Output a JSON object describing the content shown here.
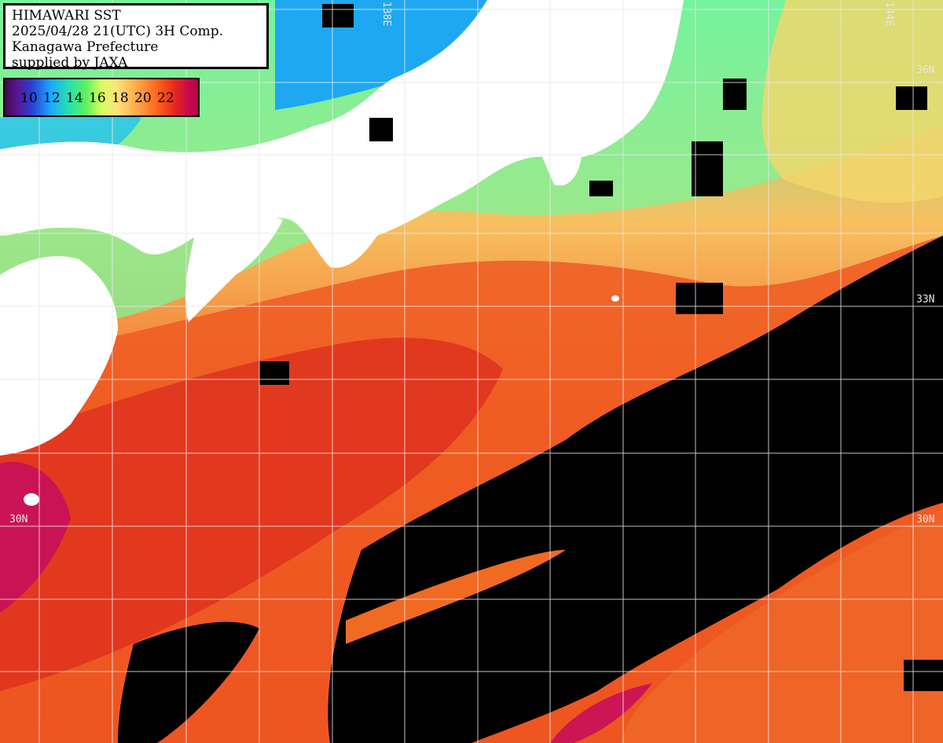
{
  "header": {
    "line1": "HIMAWARI SST",
    "line2": "2025/04/28 21(UTC) 3H Comp.",
    "line3": "Kanagawa Prefecture",
    "line4": "supplied by JAXA"
  },
  "legend": {
    "ticks": [
      "10",
      "12",
      "14",
      "16",
      "18",
      "20",
      "22"
    ],
    "unit_hint": "sea surface temperature scale"
  },
  "grid_labels": {
    "lat_36": "36N",
    "lat_33": "33N",
    "lat_30_left": "30N",
    "lat_30_right": "30N",
    "lon_144": "144E",
    "lon_top": "138E"
  },
  "colors": {
    "land": "#ffffff",
    "no_data": "#000000",
    "grid": "#e8e8e8",
    "warm_core": "#e03a18",
    "mid_warm": "#f5802a",
    "cool_coastal": "#7dfc8a",
    "cold_bay": "#18a6f0",
    "hot_south": "#c8105a"
  }
}
